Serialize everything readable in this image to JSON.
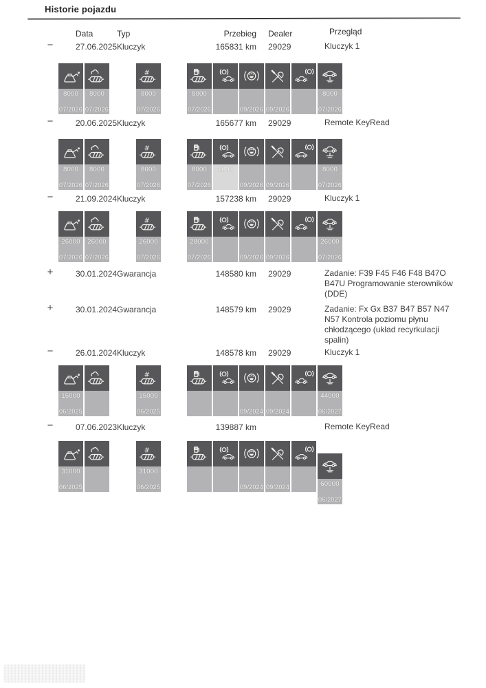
{
  "title": "Historie pojazdu",
  "columns": {
    "data": "Data",
    "typ": "Typ",
    "przebieg": "Przebieg",
    "dealer": "Dealer",
    "przeglad": "Przegląd"
  },
  "colors": {
    "tile_header": "#57575a",
    "tile_body": "#b3b3b5",
    "tile_body_light": "#d9d9d9",
    "tile_text": "#f7f7f5"
  },
  "rows": [
    {
      "marker": "−",
      "date": "27.06.2025",
      "type": "Kluczyk",
      "mileage": "165831 km",
      "dealer": "29029",
      "inspection": [
        "Kluczyk 1"
      ],
      "tiles": [
        {
          "icon": "oil-can",
          "value": "8000",
          "due": "07/2026"
        },
        {
          "icon": "exhaust-emission",
          "value": "8000",
          "due": "07/2026"
        },
        {
          "icon": "microfilter",
          "value": "8000",
          "due": "07/2026"
        },
        {
          "icon": "fuel-filter",
          "value": "8000",
          "due": "07/2026"
        },
        {
          "icon": "front-brake-pads",
          "value": "",
          "due": ""
        },
        {
          "icon": "brake-fluid",
          "value": "",
          "due": "09/2026"
        },
        {
          "icon": "vehicle-check",
          "value": "",
          "due": "09/2026"
        },
        {
          "icon": "rear-brake-pads",
          "value": "",
          "due": ""
        },
        {
          "icon": "vehicle-inspection",
          "value": "8000",
          "due": "07/2026"
        }
      ]
    },
    {
      "marker": "−",
      "date": "20.06.2025",
      "type": "Kluczyk",
      "mileage": "165677 km",
      "dealer": "29029",
      "inspection": [
        "Remote KeyRead"
      ],
      "tiles": [
        {
          "icon": "oil-can",
          "value": "8000",
          "due": "07/2026"
        },
        {
          "icon": "exhaust-emission",
          "value": "8000",
          "due": "07/2026"
        },
        {
          "icon": "microfilter",
          "value": "8000",
          "due": "07/2026"
        },
        {
          "icon": "fuel-filter",
          "value": "8000",
          "due": "07/2026"
        },
        {
          "icon": "front-brake-pads",
          "value": "2000",
          "due": "",
          "light": true
        },
        {
          "icon": "brake-fluid",
          "value": "",
          "due": "09/2026"
        },
        {
          "icon": "vehicle-check",
          "value": "",
          "due": "09/2026"
        },
        {
          "icon": "rear-brake-pads",
          "value": "",
          "due": ""
        },
        {
          "icon": "vehicle-inspection",
          "value": "8000",
          "due": "07/2026"
        }
      ]
    },
    {
      "marker": "−",
      "date": "21.09.2024",
      "type": "Kluczyk",
      "mileage": "157238 km",
      "dealer": "29029",
      "inspection": [
        "Kluczyk 1"
      ],
      "tiles": [
        {
          "icon": "oil-can",
          "value": "26000",
          "due": "07/2026"
        },
        {
          "icon": "exhaust-emission",
          "value": "26000",
          "due": "07/2026"
        },
        {
          "icon": "microfilter",
          "value": "26000",
          "due": "07/2026"
        },
        {
          "icon": "fuel-filter",
          "value": "28000",
          "due": "07/2026"
        },
        {
          "icon": "front-brake-pads",
          "value": "",
          "due": ""
        },
        {
          "icon": "brake-fluid",
          "value": "",
          "due": "09/2026"
        },
        {
          "icon": "vehicle-check",
          "value": "",
          "due": "09/2026"
        },
        {
          "icon": "rear-brake-pads",
          "value": "",
          "due": ""
        },
        {
          "icon": "vehicle-inspection",
          "value": "26000",
          "due": "07/2026"
        }
      ]
    },
    {
      "marker": "+",
      "date": "30.01.2024",
      "type": "Gwarancja",
      "mileage": "148580 km",
      "dealer": "29029",
      "inspection": [
        "Zadanie: F39 F45 F46 F48 B47O",
        "B47U Programowanie sterowników",
        "(DDE)"
      ]
    },
    {
      "marker": "+",
      "date": "30.01.2024",
      "type": "Gwarancja",
      "mileage": "148579 km",
      "dealer": "29029",
      "inspection": [
        "Zadanie: Fx Gx B37 B47 B57 N47",
        "N57 Kontrola poziomu płynu",
        "chłodzącego (układ recyrkulacji",
        "spalin)"
      ]
    },
    {
      "marker": "−",
      "date": "26.01.2024",
      "type": "Kluczyk",
      "mileage": "148578 km",
      "dealer": "29029",
      "inspection": [
        "Kluczyk 1"
      ],
      "tiles": [
        {
          "icon": "oil-can",
          "value": "15000",
          "due": "06/2025"
        },
        {
          "icon": "exhaust-emission",
          "value": "",
          "due": ""
        },
        {
          "icon": "microfilter",
          "value": "15000",
          "due": "06/2025"
        },
        {
          "icon": "fuel-filter",
          "value": "",
          "due": ""
        },
        {
          "icon": "front-brake-pads",
          "value": "",
          "due": ""
        },
        {
          "icon": "brake-fluid",
          "value": "",
          "due": "09/2024"
        },
        {
          "icon": "vehicle-check",
          "value": "",
          "due": "09/2024"
        },
        {
          "icon": "rear-brake-pads",
          "value": "",
          "due": ""
        },
        {
          "icon": "vehicle-inspection",
          "value": "44000",
          "due": "06/2027"
        }
      ]
    },
    {
      "marker": "−",
      "date": "07.06.2023",
      "type": "Kluczyk",
      "mileage": "139887 km",
      "dealer": "",
      "inspection": [
        "Remote KeyRead"
      ],
      "tiles": [
        {
          "icon": "oil-can",
          "value": "31000",
          "due": "06/2025"
        },
        {
          "icon": "exhaust-emission",
          "value": "",
          "due": ""
        },
        {
          "icon": "microfilter",
          "value": "31000",
          "due": "06/2025"
        },
        {
          "icon": "fuel-filter",
          "value": "",
          "due": ""
        },
        {
          "icon": "front-brake-pads",
          "value": "",
          "due": ""
        },
        {
          "icon": "brake-fluid",
          "value": "",
          "due": "09/2024"
        },
        {
          "icon": "vehicle-check",
          "value": "",
          "due": "09/2024"
        },
        {
          "icon": "rear-brake-pads",
          "value": "",
          "due": ""
        },
        {
          "icon": "vehicle-inspection",
          "value": "60000",
          "due": "06/2027",
          "offset": true
        }
      ]
    }
  ]
}
